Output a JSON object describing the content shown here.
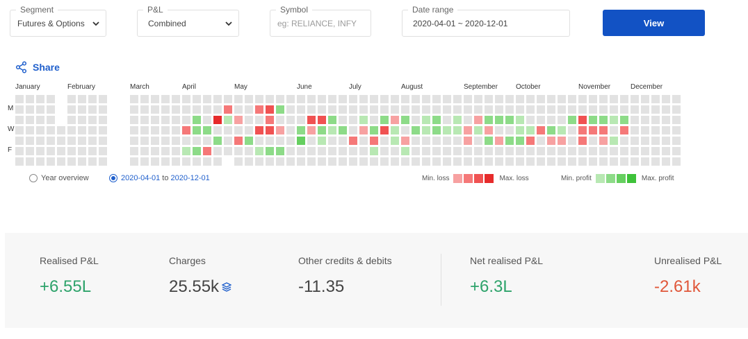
{
  "filters": {
    "segment": {
      "label": "Segment",
      "value": "Futures & Options"
    },
    "pnl": {
      "label": "P&L",
      "value": "Combined"
    },
    "symbol": {
      "label": "Symbol",
      "placeholder": "eg: RELIANCE, INFY"
    },
    "date_range": {
      "label": "Date range",
      "value": "2020-04-01 ~ 2020-12-01"
    },
    "view_button": "View"
  },
  "share": {
    "label": "Share",
    "icon": "share-icon"
  },
  "calendar": {
    "months": [
      "January",
      "February",
      "March",
      "April",
      "May",
      "June",
      "July",
      "August",
      "September",
      "October",
      "November",
      "December"
    ],
    "day_labels": [
      "M",
      "W",
      "F"
    ],
    "colors": {
      "empty": "#e2e2e2",
      "loss": [
        "#f7a1a1",
        "#f57878",
        "#f05252",
        "#e62b2b"
      ],
      "profit": [
        "#b8e8b3",
        "#8ddb88",
        "#66cf60",
        "#3ec23a"
      ]
    }
  },
  "view_options": {
    "year_overview": "Year overview",
    "range_from": "2020-04-01",
    "range_to_word": "to",
    "range_to": "2020-12-01"
  },
  "legend": {
    "min_loss": "Min. loss",
    "max_loss": "Max. loss",
    "min_profit": "Min. profit",
    "max_profit": "Max. profit"
  },
  "summary": {
    "realised": {
      "label": "Realised P&L",
      "value": "+6.55L"
    },
    "charges": {
      "label": "Charges",
      "value": "25.55k"
    },
    "other": {
      "label": "Other credits & debits",
      "value": "-11.35"
    },
    "net": {
      "label": "Net realised P&L",
      "value": "+6.3L"
    },
    "unrealised": {
      "label": "Unrealised P&L",
      "value": "-2.61k"
    }
  }
}
